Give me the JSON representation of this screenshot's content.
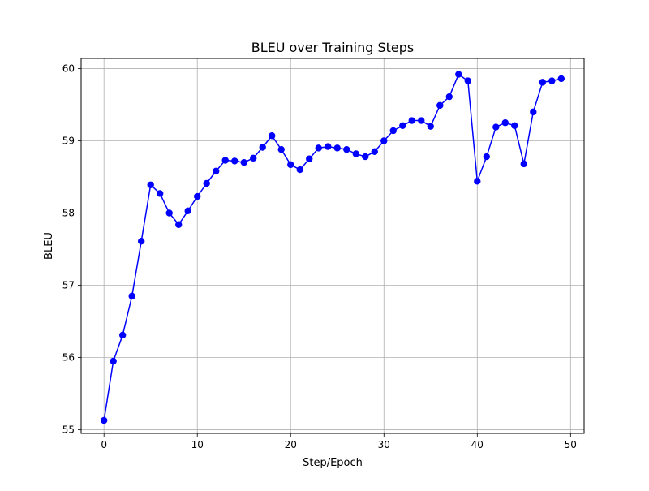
{
  "chart_data": {
    "type": "line",
    "title": "BLEU over Training Steps",
    "xlabel": "Step/Epoch",
    "ylabel": "BLEU",
    "xlim": [
      -2.45,
      51.45
    ],
    "ylim": [
      54.95,
      60.14
    ],
    "xticks": [
      0,
      10,
      20,
      30,
      40,
      50
    ],
    "yticks": [
      55,
      56,
      57,
      58,
      59,
      60
    ],
    "grid": true,
    "colors": {
      "line": "#0000ff",
      "marker": "#0000ff",
      "grid": "#b0b0b0"
    },
    "series": [
      {
        "marker": "circle",
        "x": [
          0,
          1,
          2,
          3,
          4,
          5,
          6,
          7,
          8,
          9,
          10,
          11,
          12,
          13,
          14,
          15,
          16,
          17,
          18,
          19,
          20,
          21,
          22,
          23,
          24,
          25,
          26,
          27,
          28,
          29,
          30,
          31,
          32,
          33,
          34,
          35,
          36,
          37,
          38,
          39,
          40,
          41,
          42,
          43,
          44,
          45,
          46,
          47,
          48,
          49
        ],
        "y": [
          55.13,
          55.95,
          56.31,
          56.85,
          57.61,
          58.39,
          58.27,
          58.0,
          57.84,
          58.03,
          58.23,
          58.41,
          58.58,
          58.73,
          58.72,
          58.7,
          58.76,
          58.91,
          59.07,
          58.88,
          58.67,
          58.6,
          58.75,
          58.9,
          58.92,
          58.9,
          58.88,
          58.82,
          58.78,
          58.85,
          59.0,
          59.14,
          59.21,
          59.28,
          59.28,
          59.2,
          59.49,
          59.61,
          59.92,
          59.83,
          58.44,
          58.78,
          59.19,
          59.25,
          59.21,
          58.68,
          59.4,
          59.81,
          59.83,
          59.86
        ]
      }
    ]
  }
}
